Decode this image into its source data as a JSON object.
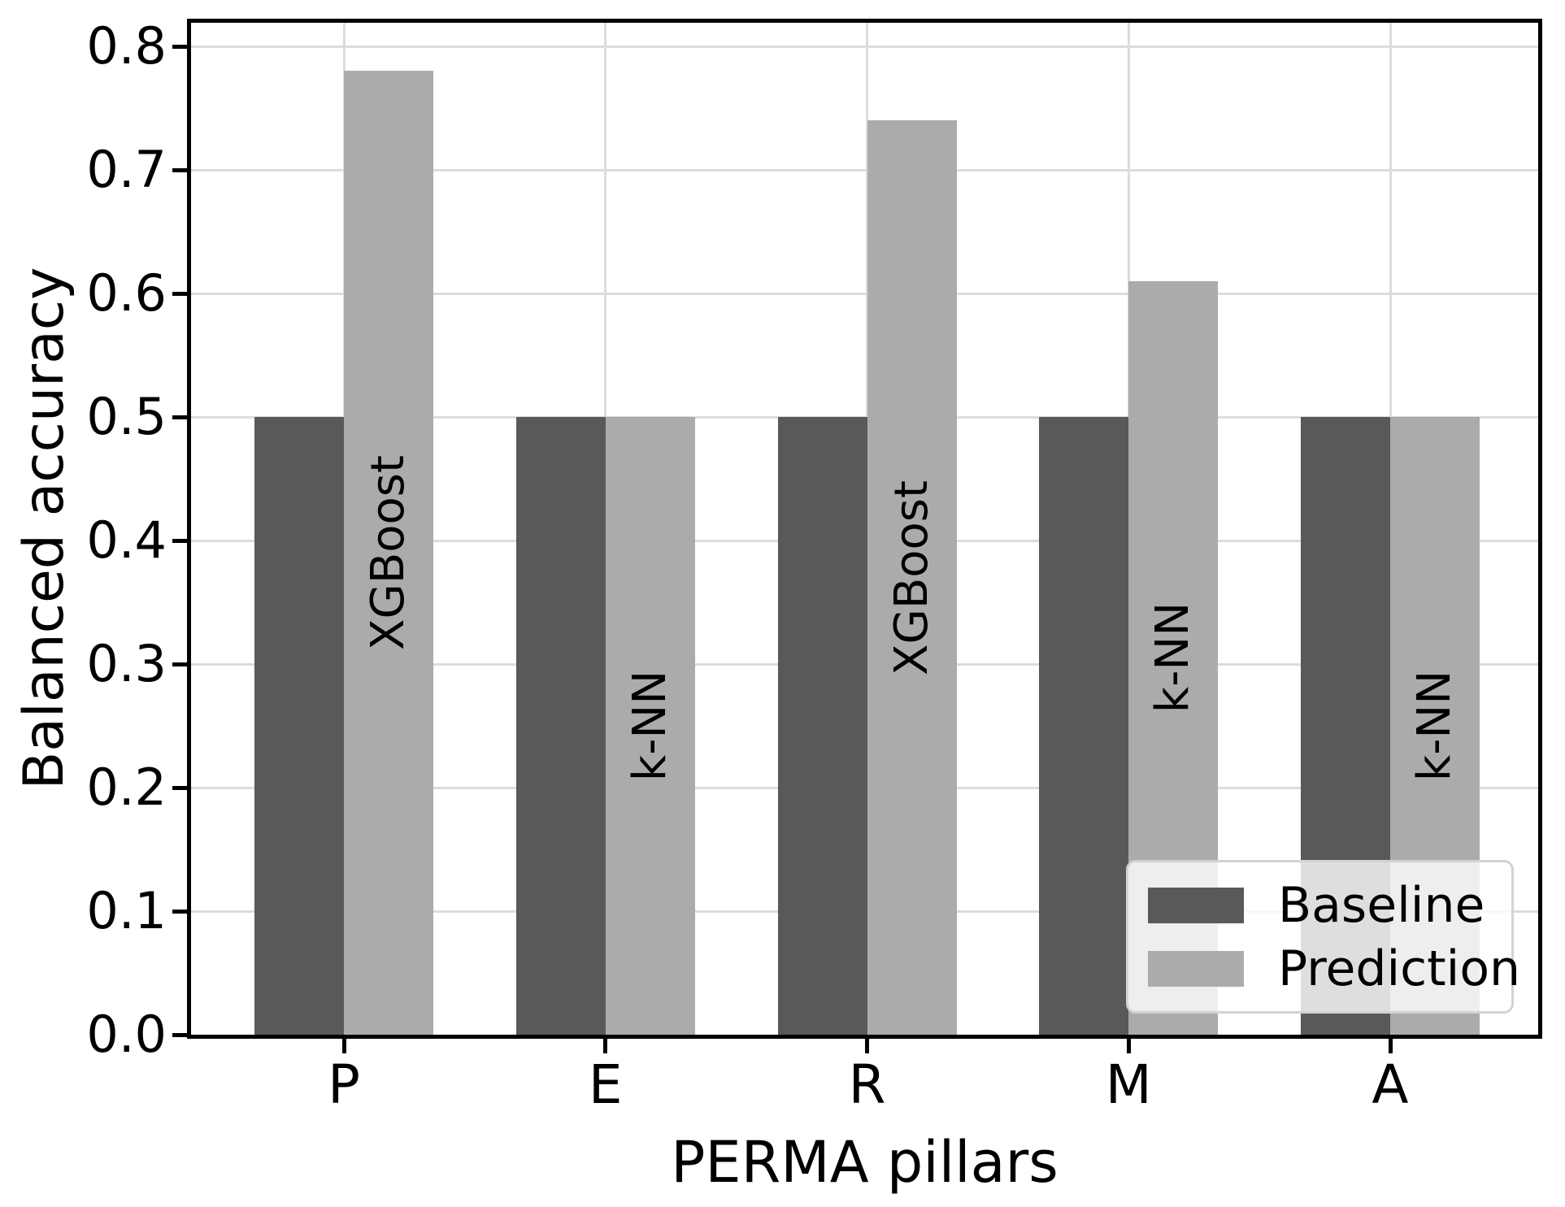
{
  "chart_data": {
    "type": "bar",
    "title": "",
    "xlabel": "PERMA pillars",
    "ylabel": "Balanced accuracy",
    "categories": [
      "P",
      "E",
      "R",
      "M",
      "A"
    ],
    "series": [
      {
        "name": "Baseline",
        "color": "#595959",
        "values": [
          0.5,
          0.5,
          0.5,
          0.5,
          0.5
        ]
      },
      {
        "name": "Prediction",
        "color": "#ababab",
        "values": [
          0.78,
          0.5,
          0.74,
          0.61,
          0.5
        ]
      }
    ],
    "bar_annotations": [
      {
        "category": "P",
        "label": "XGBoost"
      },
      {
        "category": "E",
        "label": "k-NN"
      },
      {
        "category": "R",
        "label": "XGBoost"
      },
      {
        "category": "M",
        "label": "k-NN"
      },
      {
        "category": "A",
        "label": "k-NN"
      }
    ],
    "ylim": [
      0.0,
      0.82
    ],
    "yticks": [
      0.0,
      0.1,
      0.2,
      0.3,
      0.4,
      0.5,
      0.6,
      0.7,
      0.8
    ],
    "ytick_labels": [
      "0.0",
      "0.1",
      "0.2",
      "0.3",
      "0.4",
      "0.5",
      "0.6",
      "0.7",
      "0.8"
    ],
    "grid": true,
    "gridline_color": "#dcdcdc",
    "legend": {
      "position": "lower right",
      "entries": [
        "Baseline",
        "Prediction"
      ]
    }
  }
}
